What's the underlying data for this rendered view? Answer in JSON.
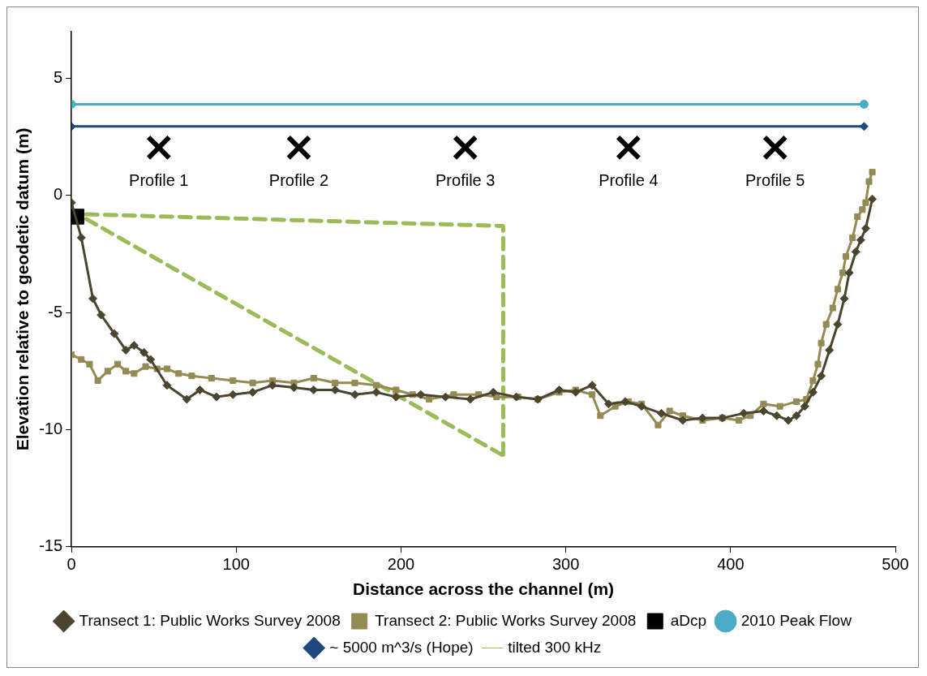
{
  "chart_data": {
    "type": "line",
    "xlabel": "Distance across the channel (m)",
    "ylabel": "Elevation relative to geodetic datum (m)",
    "xlim": [
      0,
      500
    ],
    "xticks": [
      0,
      100,
      200,
      300,
      400,
      500
    ],
    "ylim": [
      -15,
      7
    ],
    "yticks": [
      -15,
      -10,
      -5,
      0,
      5
    ],
    "legend": "bottom",
    "series": [
      {
        "name": "Transect 1: Public Works Survey 2008",
        "color": "#4b4530",
        "marker": "diamond",
        "x": [
          0,
          6,
          13,
          18,
          26,
          33,
          38,
          44,
          48,
          58,
          70,
          78,
          88,
          98,
          110,
          122,
          135,
          147,
          160,
          172,
          185,
          197,
          212,
          227,
          242,
          256,
          270,
          283,
          296,
          306,
          316,
          326,
          336,
          346,
          358,
          371,
          383,
          395,
          408,
          420,
          428,
          435,
          440,
          445,
          450,
          455,
          460,
          465,
          469,
          472,
          476,
          479,
          482,
          486
        ],
        "values": [
          -0.3,
          -1.8,
          -4.4,
          -5.1,
          -5.9,
          -6.6,
          -6.4,
          -6.7,
          -7.0,
          -8.1,
          -8.7,
          -8.3,
          -8.6,
          -8.5,
          -8.4,
          -8.1,
          -8.2,
          -8.3,
          -8.3,
          -8.5,
          -8.4,
          -8.6,
          -8.5,
          -8.6,
          -8.7,
          -8.4,
          -8.6,
          -8.7,
          -8.3,
          -8.4,
          -8.1,
          -8.9,
          -8.8,
          -9.0,
          -9.3,
          -9.6,
          -9.5,
          -9.5,
          -9.3,
          -9.2,
          -9.4,
          -9.6,
          -9.4,
          -9.0,
          -8.4,
          -7.7,
          -6.6,
          -5.5,
          -4.4,
          -3.3,
          -2.4,
          -1.9,
          -1.4,
          -0.15
        ]
      },
      {
        "name": "Transect 2: Public Works Survey 2008",
        "color": "#948b54",
        "marker": "square",
        "x": [
          0,
          6,
          11,
          16,
          22,
          28,
          33,
          38,
          45,
          52,
          58,
          65,
          73,
          85,
          98,
          110,
          122,
          135,
          147,
          160,
          172,
          185,
          197,
          207,
          217,
          232,
          247,
          258,
          271,
          283,
          296,
          306,
          316,
          321,
          330,
          338,
          346,
          356,
          363,
          371,
          383,
          395,
          405,
          412,
          420,
          430,
          440,
          446,
          450,
          453,
          455,
          458,
          462,
          465,
          468,
          470,
          474,
          477,
          480,
          482,
          484,
          486
        ],
        "values": [
          -6.8,
          -7.0,
          -7.2,
          -7.9,
          -7.5,
          -7.2,
          -7.5,
          -7.6,
          -7.3,
          -7.4,
          -7.4,
          -7.6,
          -7.7,
          -7.8,
          -7.9,
          -8.0,
          -7.9,
          -8.0,
          -7.8,
          -8.0,
          -8.0,
          -8.1,
          -8.3,
          -8.5,
          -8.7,
          -8.5,
          -8.5,
          -8.6,
          -8.6,
          -8.7,
          -8.4,
          -8.3,
          -8.5,
          -9.4,
          -9.0,
          -8.8,
          -8.9,
          -9.8,
          -9.2,
          -9.4,
          -9.6,
          -9.5,
          -9.6,
          -9.4,
          -8.9,
          -9.0,
          -8.8,
          -8.7,
          -7.9,
          -7.2,
          -6.3,
          -5.5,
          -4.8,
          -4.0,
          -3.3,
          -2.6,
          -1.8,
          -0.9,
          -0.6,
          -0.3,
          0.6,
          1.0
        ]
      },
      {
        "name": "aDcp",
        "type": "scatter",
        "color": "#000000",
        "marker": "square",
        "x": [
          3
        ],
        "values": [
          -0.9
        ]
      },
      {
        "name": "2010 Peak Flow",
        "color": "#4bacc6",
        "marker": "circle",
        "x": [
          0,
          481
        ],
        "values": [
          3.9,
          3.9
        ]
      },
      {
        "name": "~ 5000 m^3/s (Hope)",
        "color": "#1f497d",
        "marker": "diamond",
        "x": [
          0,
          481
        ],
        "values": [
          2.95,
          2.95
        ]
      },
      {
        "name": "tilted 300 kHz",
        "color": "#9bbb59",
        "marker": "none",
        "line_style": "dashed",
        "x": [
          9,
          262,
          262
        ],
        "values": [
          -0.8,
          -1.3,
          -11.1
        ]
      },
      {
        "type": "line",
        "color": "#9bbb59",
        "marker": "none",
        "line_style": "dashed",
        "x": [
          9,
          262
        ],
        "values": [
          -1.0,
          -11.1
        ]
      },
      {
        "type": "scatter",
        "color": "#000000",
        "marker": "cross",
        "x": [
          53,
          138,
          239,
          338,
          427
        ],
        "values": [
          2.05,
          2.05,
          2.05,
          2.05,
          2.05
        ]
      }
    ],
    "annotations": [
      {
        "text": "Profile 1",
        "x": 53,
        "y": 2.05
      },
      {
        "text": "Profile 2",
        "x": 138,
        "y": 2.05
      },
      {
        "text": "Profile 3",
        "x": 239,
        "y": 2.05
      },
      {
        "text": "Profile 4",
        "x": 338,
        "y": 2.05
      },
      {
        "text": "Profile 5",
        "x": 427,
        "y": 2.05
      }
    ]
  }
}
